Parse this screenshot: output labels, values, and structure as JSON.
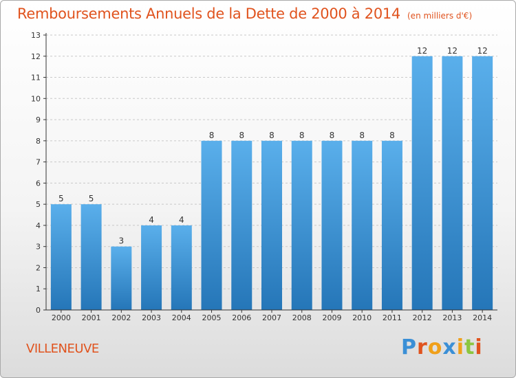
{
  "title": "Remboursements Annuels de la Dette de 2000 à 2014",
  "unit": "(en milliers d'€)",
  "commune": "VILLENEUVE",
  "logo": {
    "text": "Proxiti",
    "letters": [
      {
        "char": "P",
        "color": "#3a8fd6"
      },
      {
        "char": "r",
        "color": "#e0531e"
      },
      {
        "char": "o",
        "color": "#f0a01a"
      },
      {
        "char": "x",
        "color": "#3a8fd6"
      },
      {
        "char": "i",
        "color": "#f0a01a"
      },
      {
        "char": "t",
        "color": "#8cc63f"
      },
      {
        "char": "i",
        "color": "#e0531e"
      }
    ]
  },
  "colors": {
    "title": "#e0531e",
    "bar_top": "#5aafeb",
    "bar_bottom": "#2576b8",
    "axis": "#333333",
    "grid": "#c8c8c8"
  },
  "chart_data": {
    "type": "bar",
    "title": "Remboursements Annuels de la Dette de 2000 à 2014",
    "subtitle": "(en milliers d'€)",
    "xlabel": "",
    "ylabel": "",
    "categories": [
      "2000",
      "2001",
      "2002",
      "2003",
      "2004",
      "2005",
      "2006",
      "2007",
      "2008",
      "2009",
      "2010",
      "2011",
      "2012",
      "2013",
      "2014"
    ],
    "values": [
      5,
      5,
      3,
      4,
      4,
      8,
      8,
      8,
      8,
      8,
      8,
      8,
      12,
      12,
      12
    ],
    "ylim": [
      0,
      13
    ],
    "yticks": [
      0,
      1,
      2,
      3,
      4,
      5,
      6,
      7,
      8,
      9,
      10,
      11,
      12,
      13
    ],
    "grid": true,
    "data_labels": true
  }
}
